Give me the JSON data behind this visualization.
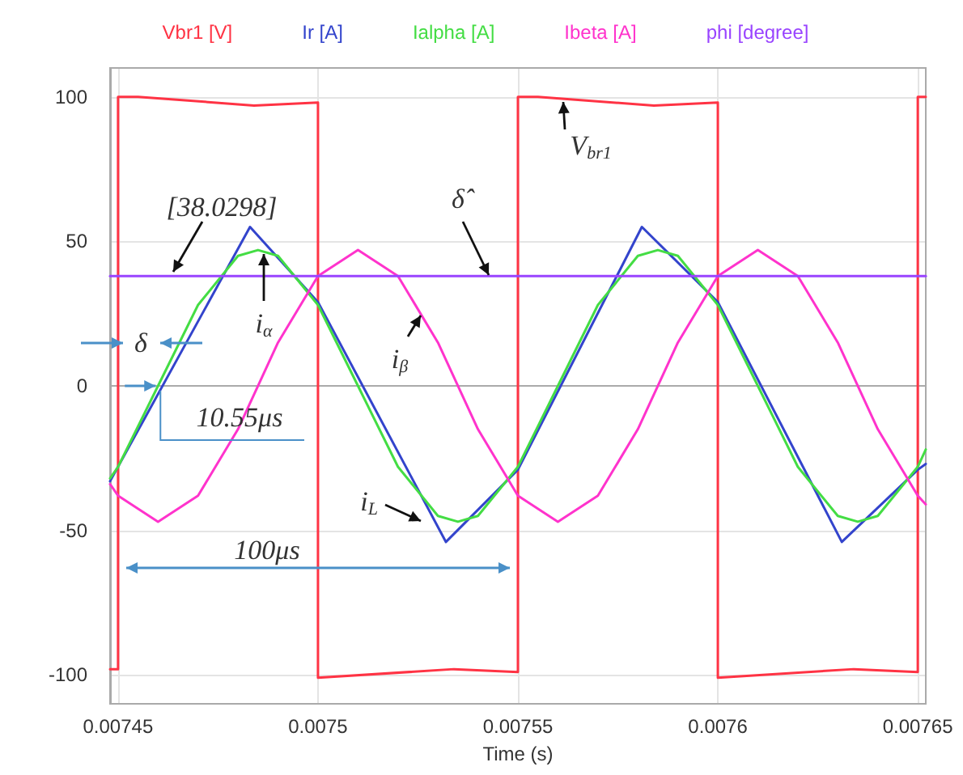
{
  "chart_data": {
    "type": "line",
    "xlabel": "Time (s)",
    "xlim": [
      0.007448,
      0.007652
    ],
    "ylim": [
      -110,
      110
    ],
    "xticks": [
      0.00745,
      0.0075,
      0.00755,
      0.0076,
      0.00765
    ],
    "yticks": [
      -100,
      -50,
      0,
      50,
      100
    ],
    "grid": true,
    "legend": "top",
    "marker": "none",
    "line_style": "solid",
    "series": [
      {
        "name": "Vbr1 [V]",
        "color": "#ff3344",
        "x": [
          0.007448,
          0.00745,
          0.00745,
          0.007455,
          0.007484,
          0.0075,
          0.0075,
          0.007534,
          0.00755,
          0.00755,
          0.007555,
          0.007584,
          0.0076,
          0.0076,
          0.007634,
          0.00765,
          0.00765,
          0.007652
        ],
        "values": [
          -98,
          -98,
          100,
          100,
          97,
          98,
          -101,
          -98,
          -99,
          100,
          100,
          97,
          98,
          -101,
          -98,
          -99,
          100,
          100
        ]
      },
      {
        "name": "Ir [A]",
        "color": "#3344cc",
        "x": [
          0.007448,
          0.007483,
          0.0075,
          0.007532,
          0.00755,
          0.007581,
          0.0076,
          0.007631,
          0.00765,
          0.007652
        ],
        "values": [
          -33,
          55,
          29,
          -54,
          -29,
          55,
          29,
          -54,
          -29,
          -27
        ]
      },
      {
        "name": "Ialpha [A]",
        "color": "#44dd44",
        "x": [
          0.007448,
          0.00745,
          0.00746,
          0.00747,
          0.00748,
          0.007485,
          0.00749,
          0.0075,
          0.00751,
          0.00752,
          0.00753,
          0.007535,
          0.00754,
          0.00755,
          0.00756,
          0.00757,
          0.00758,
          0.007585,
          0.00759,
          0.0076,
          0.00761,
          0.00762,
          0.00763,
          0.007635,
          0.00764,
          0.00765,
          0.007652
        ],
        "values": [
          -32,
          -28,
          0,
          28,
          45,
          47,
          45,
          28,
          0,
          -28,
          -45,
          -47,
          -45,
          -28,
          0,
          28,
          45,
          47,
          45,
          28,
          0,
          -28,
          -45,
          -47,
          -45,
          -28,
          -22
        ]
      },
      {
        "name": "Ibeta [A]",
        "color": "#ff33cc",
        "x": [
          0.007448,
          0.00745,
          0.00746,
          0.00747,
          0.00748,
          0.00749,
          0.0075,
          0.00751,
          0.00752,
          0.00753,
          0.00754,
          0.00755,
          0.00756,
          0.00757,
          0.00758,
          0.00759,
          0.0076,
          0.00761,
          0.00762,
          0.00763,
          0.00764,
          0.00765,
          0.007652
        ],
        "values": [
          -34,
          -38,
          -47,
          -38,
          -15,
          15,
          38,
          47,
          38,
          15,
          -15,
          -38,
          -47,
          -38,
          -15,
          15,
          38,
          47,
          38,
          15,
          -15,
          -38,
          -41
        ]
      },
      {
        "name": "phi [degree]",
        "color": "#9944ff",
        "x": [
          0.007448,
          0.007652
        ],
        "values": [
          38.0298,
          38.0298
        ]
      }
    ],
    "annotations": [
      "[38.0298]",
      "δ̂",
      "V$_{br1}$",
      "i$_{α}$",
      "i$_{β}$",
      "i$_{L}$",
      "δ",
      {
        "text": "10.55μs",
        "x": 0.0074606,
        "y": 0
      },
      "100μs"
    ]
  }
}
